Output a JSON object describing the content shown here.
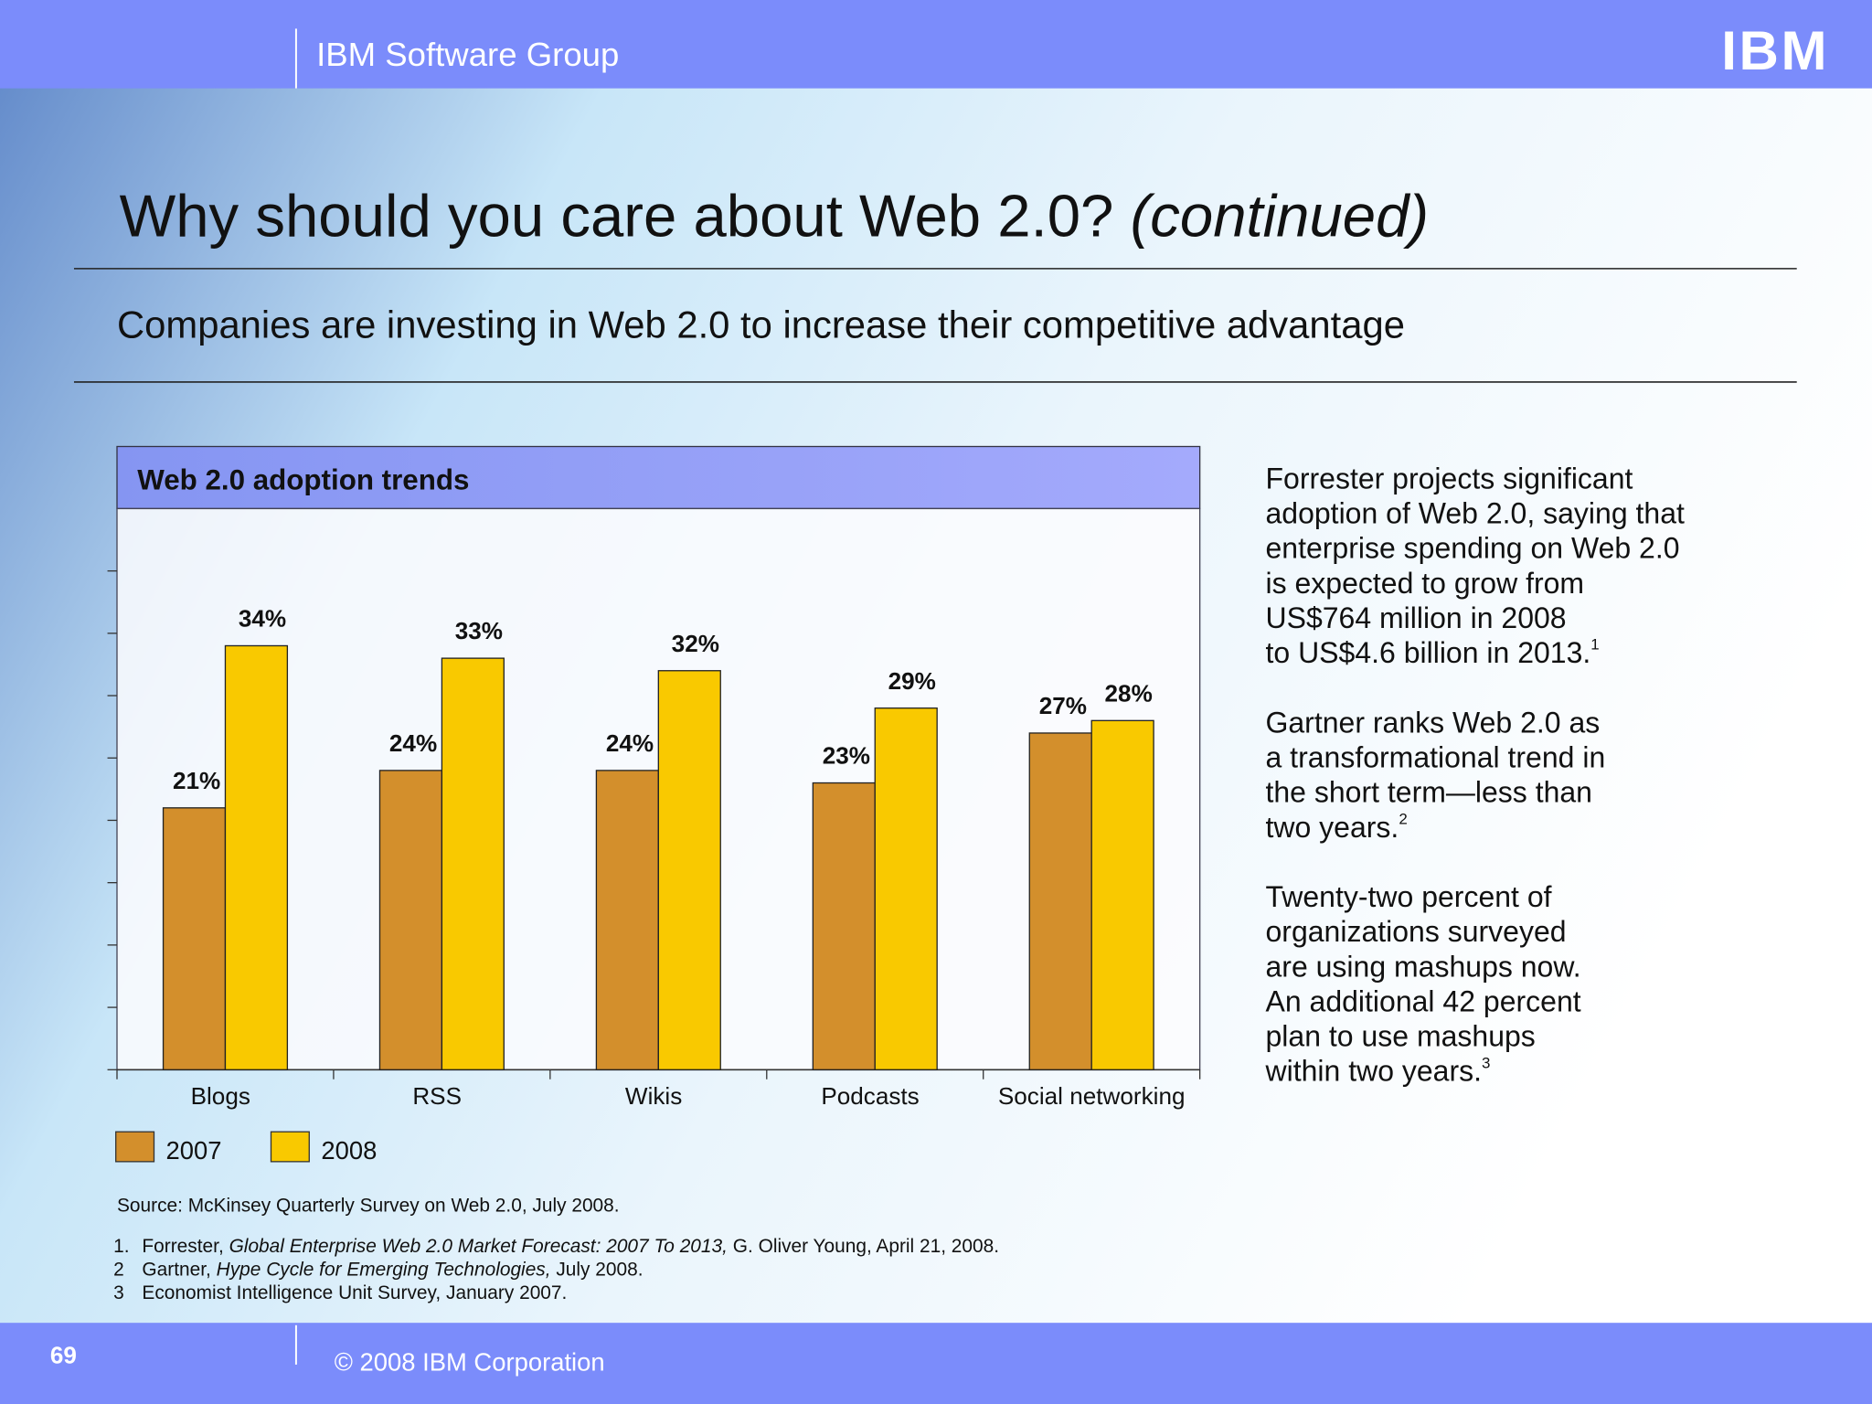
{
  "header": {
    "group": "IBM Software Group",
    "logo": "IBM"
  },
  "title": {
    "main": "Why should you care about Web 2.0?",
    "suffix": "(continued)"
  },
  "subtitle": "Companies are investing in Web 2.0 to increase their competitive advantage",
  "chart_data": {
    "type": "bar",
    "title": "Web 2.0 adoption trends",
    "categories": [
      "Blogs",
      "RSS",
      "Wikis",
      "Podcasts",
      "Social networking"
    ],
    "series": [
      {
        "name": "2007",
        "color": "#d38f2c",
        "values": [
          21,
          24,
          24,
          23,
          27
        ],
        "value_labels": [
          "21%",
          "24%",
          "24%",
          "23%",
          "27%"
        ]
      },
      {
        "name": "2008",
        "color": "#f9c900",
        "values": [
          34,
          33,
          32,
          29,
          28
        ],
        "value_labels": [
          "34%",
          "33%",
          "32%",
          "29%",
          "28%"
        ]
      }
    ],
    "ylim": [
      0,
      45
    ],
    "yticks": [
      0,
      5,
      10,
      15,
      20,
      25,
      30,
      35,
      40
    ],
    "grid": false,
    "source": "Source: McKinsey Quarterly Survey on Web 2.0, July 2008."
  },
  "sidebar": [
    {
      "lines": [
        "Forrester projects significant",
        "adoption of Web 2.0, saying that",
        "enterprise spending on Web 2.0",
        "is expected to grow from",
        "US$764 million in 2008",
        "to US$4.6 billion in 2013."
      ],
      "note": "1"
    },
    {
      "lines": [
        "Gartner ranks Web 2.0 as",
        "a transformational trend in",
        "the short term—less than",
        "two years."
      ],
      "note": "2"
    },
    {
      "lines": [
        "Twenty-two percent of",
        "organizations surveyed",
        "are using mashups now.",
        "An additional 42 percent",
        "plan to use mashups",
        "within two years."
      ],
      "note": "3"
    }
  ],
  "footnotes": [
    {
      "number": "1.",
      "source": "Forrester,",
      "work": "Global Enterprise Web 2.0 Market Forecast: 2007 To 2013,",
      "rest": "G. Oliver Young, April 21, 2008."
    },
    {
      "number": "2",
      "source": "Gartner,",
      "work": "Hype Cycle for Emerging Technologies,",
      "rest": "July 2008."
    },
    {
      "number": "3",
      "source": "Economist Intelligence Unit Survey, January 2007.",
      "work": null,
      "rest": null
    }
  ],
  "footer": {
    "page": "69",
    "copyright": "© 2008 IBM Corporation"
  }
}
